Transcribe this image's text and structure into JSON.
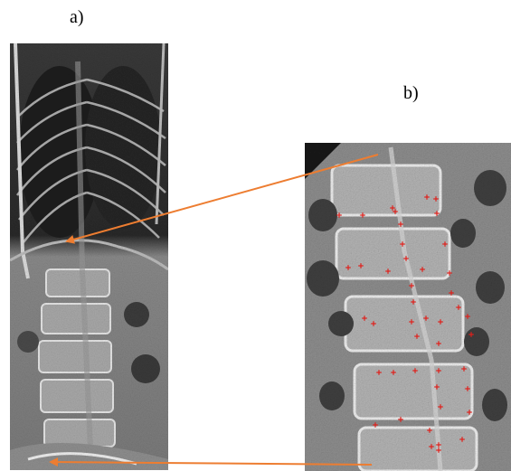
{
  "panel_a": {
    "label": "a)"
  },
  "panel_b": {
    "label": "b)"
  },
  "colors": {
    "arrow": "#ED7D31",
    "landmark": "#E0201B",
    "bone_light": "#EDEDED",
    "bone_dark": "#1E1E1E"
  },
  "icons": {
    "arrow_top": "arrow-left-icon",
    "arrow_bottom": "arrow-left-icon",
    "landmarks": "plus-marker-icon"
  }
}
